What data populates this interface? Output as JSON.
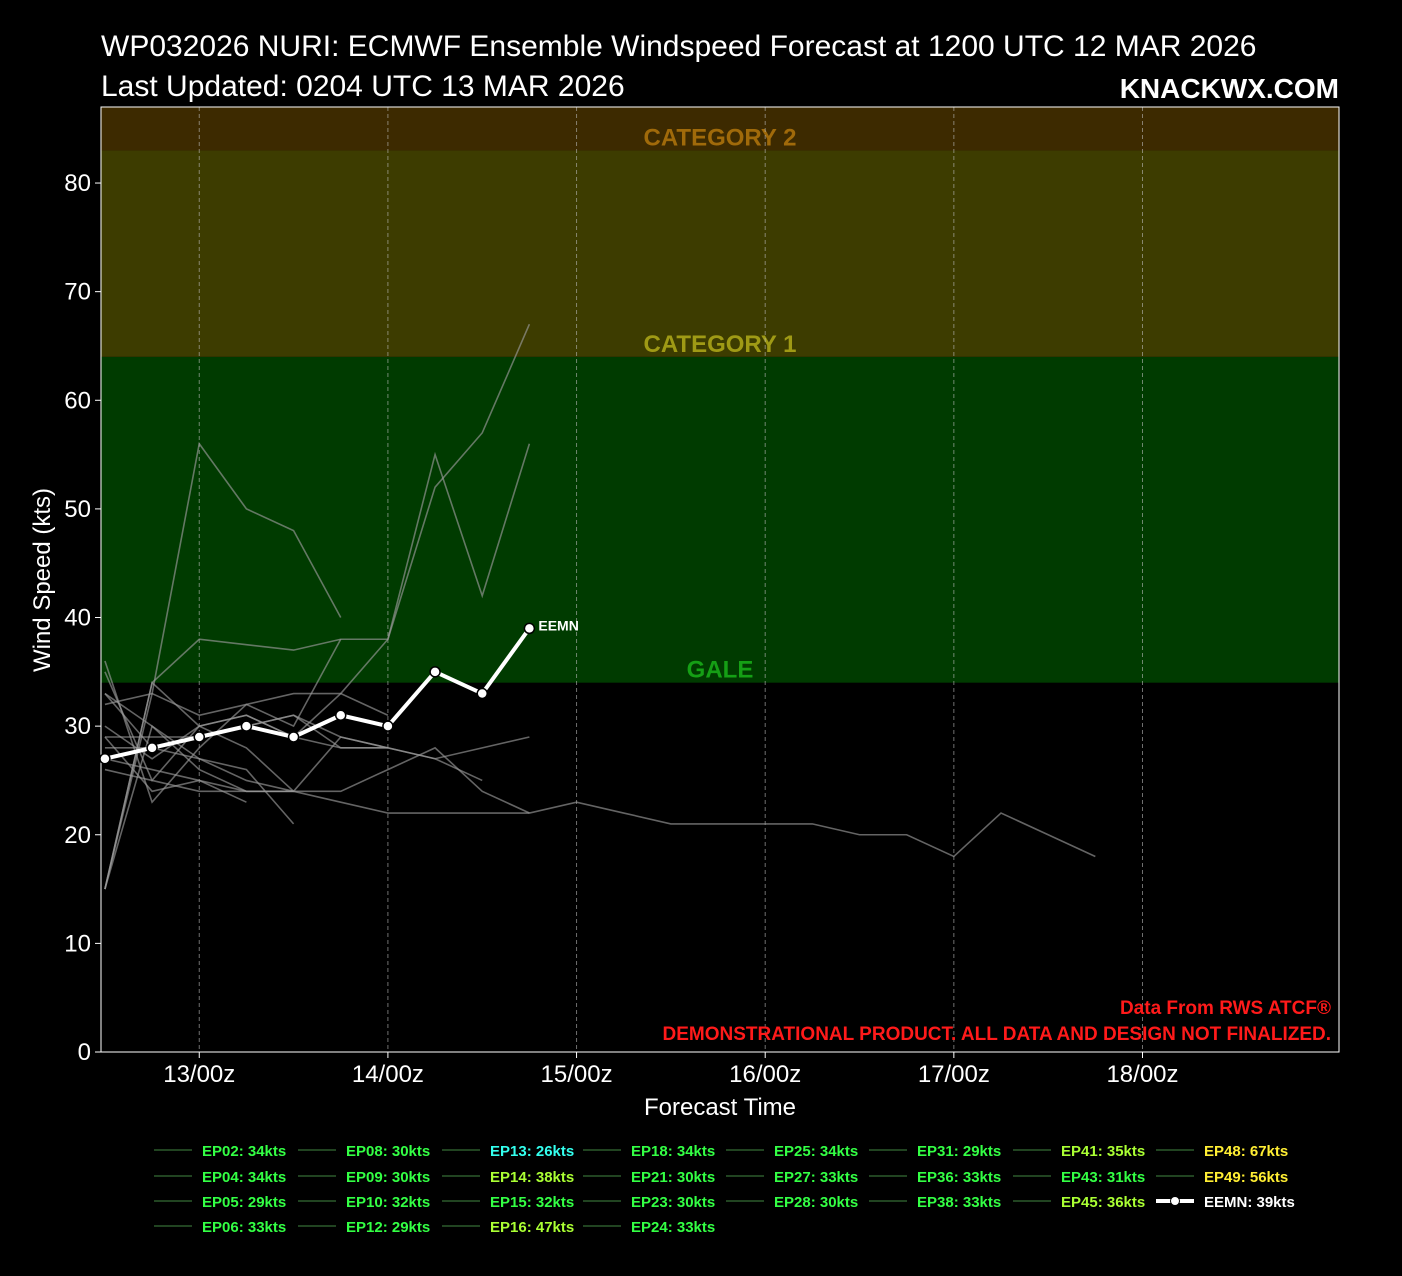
{
  "header": {
    "title": "WP032026 NURI: ECMWF Ensemble Windspeed Forecast at 1200 UTC 12 MAR 2026",
    "updated": "Last Updated: 0204 UTC 13 MAR 2026",
    "brand": "KNACKWX.COM"
  },
  "notes": {
    "source": "Data From RWS ATCF®",
    "disclaimer": "DEMONSTRATIONAL PRODUCT. ALL DATA AND DESIGN NOT FINALIZED."
  },
  "chart_data": {
    "type": "line",
    "xlabel": "Forecast Time",
    "ylabel": "Wind Speed (kts)",
    "x_units": "hours after 12/00z",
    "xlim": [
      -12.5,
      145
    ],
    "ylim": [
      0,
      87
    ],
    "x_ticks": [
      {
        "x": 0,
        "label": "13/00z"
      },
      {
        "x": 24,
        "label": "14/00z"
      },
      {
        "x": 48,
        "label": "15/00z"
      },
      {
        "x": 72,
        "label": "16/00z"
      },
      {
        "x": 96,
        "label": "17/00z"
      },
      {
        "x": 120,
        "label": "18/00z"
      }
    ],
    "y_ticks": [
      0,
      10,
      20,
      30,
      40,
      50,
      60,
      70,
      80
    ],
    "grid": true,
    "bands": [
      {
        "label": "GALE",
        "from": 34,
        "to": 64,
        "color": "#003b00",
        "label_color": "#159f15"
      },
      {
        "label": "CATEGORY 1",
        "from": 64,
        "to": 83,
        "color": "#3d3c00",
        "label_color": "#9f9a15"
      },
      {
        "label": "CATEGORY 2",
        "from": 83,
        "to": 87,
        "color": "#3d2a00",
        "label_color": "#a06a0a"
      }
    ],
    "members": [
      {
        "x": [
          -12,
          -6,
          0,
          6,
          12,
          18,
          24,
          30,
          36,
          42,
          48,
          54,
          60,
          66,
          72,
          78,
          84,
          90,
          96,
          102,
          108,
          114
        ],
        "y": [
          26,
          25,
          24,
          24,
          24,
          23,
          22,
          22,
          22,
          22,
          23,
          22,
          21,
          21,
          21,
          21,
          20,
          20,
          18,
          22,
          20,
          18
        ]
      },
      {
        "x": [
          -12,
          -6,
          0,
          6,
          12,
          18
        ],
        "y": [
          15,
          33,
          56,
          50,
          48,
          40
        ]
      },
      {
        "x": [
          -12,
          -6,
          0,
          6,
          12,
          18,
          24,
          30,
          36,
          42
        ],
        "y": [
          15,
          34,
          38,
          37.5,
          37,
          38,
          38,
          55,
          42,
          56
        ]
      },
      {
        "x": [
          -12,
          -6,
          0,
          6,
          12,
          18,
          24,
          30,
          36,
          42
        ],
        "y": [
          35,
          25,
          30,
          31,
          29,
          33,
          38,
          52,
          57,
          67
        ]
      },
      {
        "x": [
          -12,
          -6,
          0,
          6,
          12,
          18,
          24,
          30,
          36,
          42
        ],
        "y": [
          33,
          30,
          26,
          24,
          24,
          24,
          26,
          28,
          24,
          22
        ]
      },
      {
        "x": [
          -12,
          -6,
          0,
          6,
          12,
          18,
          24,
          30,
          36,
          42
        ],
        "y": [
          29,
          29,
          29,
          30,
          31,
          28,
          28,
          27,
          28,
          29
        ]
      },
      {
        "x": [
          -12,
          -6,
          0,
          6,
          12,
          18
        ],
        "y": [
          36,
          23,
          28,
          32,
          30,
          38
        ]
      },
      {
        "x": [
          -12,
          -6,
          0,
          6,
          12,
          18,
          24
        ],
        "y": [
          32,
          33,
          31,
          32,
          33,
          33,
          31
        ]
      },
      {
        "x": [
          -12,
          -6,
          0,
          6,
          12,
          18,
          24
        ],
        "y": [
          28,
          28,
          29,
          30,
          31,
          29,
          28
        ]
      },
      {
        "x": [
          -12,
          -6,
          0,
          6,
          12
        ],
        "y": [
          30,
          27,
          30,
          28,
          24
        ]
      },
      {
        "x": [
          -12,
          -6,
          0,
          6,
          12
        ],
        "y": [
          33,
          28,
          27,
          26,
          21
        ]
      },
      {
        "x": [
          -12,
          -6,
          0,
          6
        ],
        "y": [
          27,
          26,
          25,
          23
        ]
      },
      {
        "x": [
          -12,
          -6,
          0,
          6,
          12
        ],
        "y": [
          15,
          30,
          27,
          25,
          24
        ]
      },
      {
        "x": [
          -12,
          -6,
          0,
          6,
          12,
          18,
          24
        ],
        "y": [
          15,
          34,
          30,
          31,
          29,
          28,
          28
        ]
      },
      {
        "x": [
          -12,
          -6,
          0,
          6,
          12,
          18,
          24,
          30,
          36
        ],
        "y": [
          29,
          24,
          25,
          24,
          24,
          29,
          28,
          27,
          25
        ]
      }
    ],
    "series": [
      {
        "name": "EEMN",
        "x": [
          -12,
          -6,
          0,
          6,
          12,
          18,
          24,
          30,
          36,
          42
        ],
        "y": [
          27,
          28,
          29,
          30,
          29,
          31,
          30,
          35,
          33,
          39
        ]
      }
    ],
    "legend": [
      [
        "EP02: 34kts",
        "EP04: 34kts",
        "EP05: 29kts",
        "EP06: 33kts"
      ],
      [
        "EP08: 30kts",
        "EP09: 30kts",
        "EP10: 32kts",
        "EP12: 29kts"
      ],
      [
        "EP13: 26kts",
        "EP14: 38kts",
        "EP15: 32kts",
        "EP16: 47kts"
      ],
      [
        "EP18: 34kts",
        "EP21: 30kts",
        "EP23: 30kts",
        "EP24: 33kts"
      ],
      [
        "EP25: 34kts",
        "EP27: 33kts",
        "EP28: 30kts"
      ],
      [
        "EP31: 29kts",
        "EP36: 33kts",
        "EP38: 33kts"
      ],
      [
        "EP41: 35kts",
        "EP43: 31kts",
        "EP45: 36kts"
      ],
      [
        "EP48: 67kts",
        "EP49: 56kts",
        "EEMN: 39kts"
      ]
    ],
    "legend_colors": {
      "low": "#33ff44",
      "cyan": "#33ffee",
      "mid": "#aaff33",
      "high": "#ffee33",
      "mean": "#ffffff"
    }
  }
}
